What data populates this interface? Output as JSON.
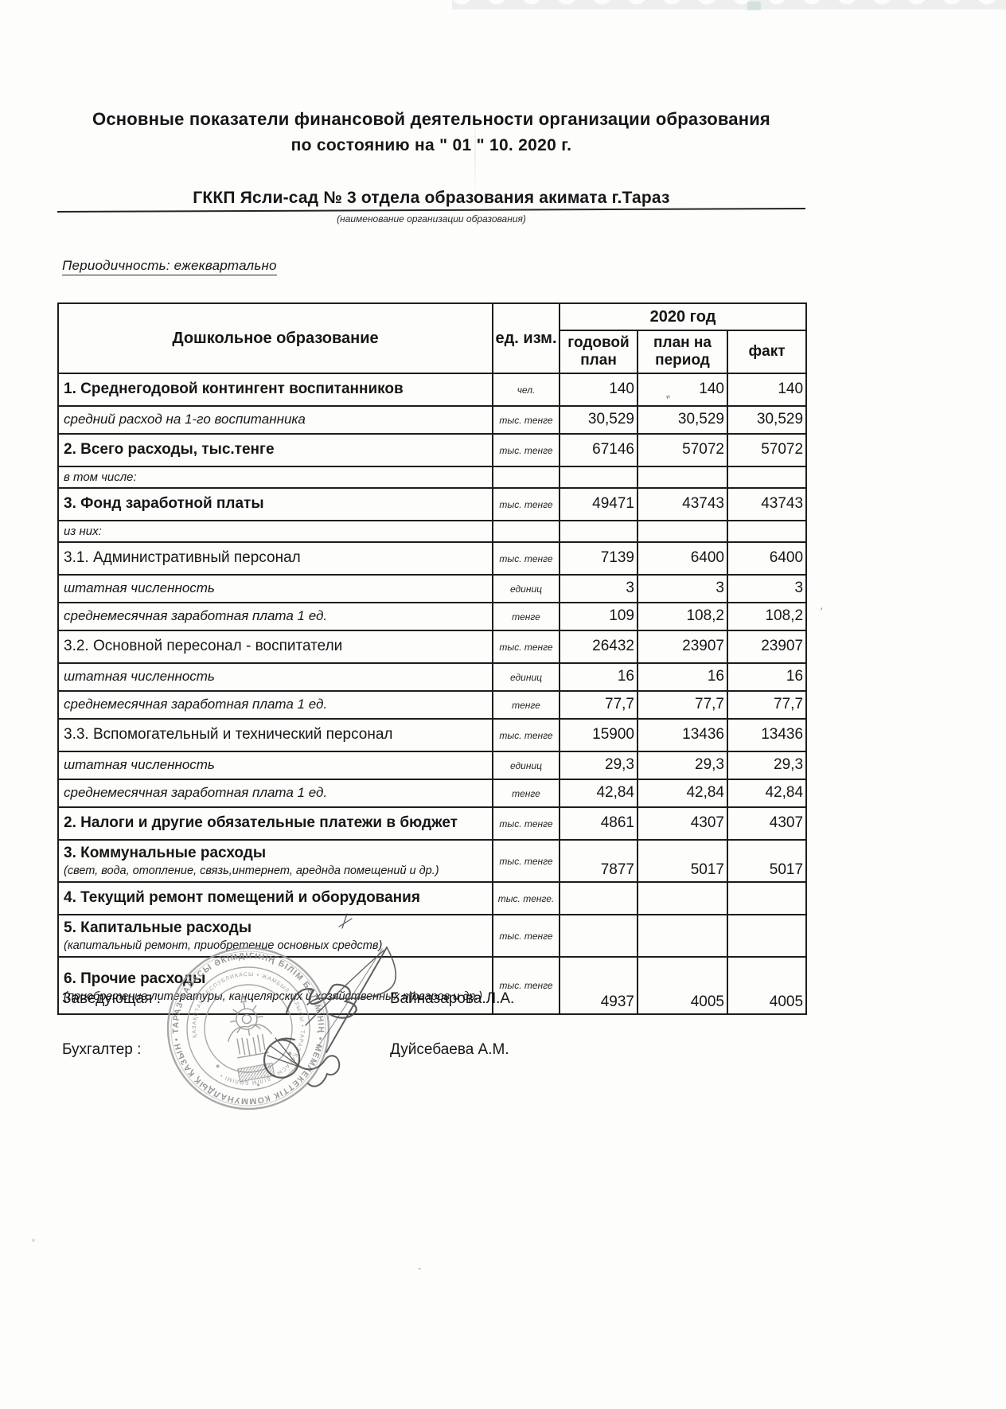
{
  "page": {
    "title_line1": "Основные показатели финансовой деятельности организации образования",
    "title_line2": "по состоянию на \" 01 \" 10. 2020 г.",
    "org_name": "ГККП Ясли-сад № 3  отдела образования акимата г.Тараз",
    "org_caption": "(наименование организации образования)",
    "periodicity": "Периодичность: ежеквартально"
  },
  "table": {
    "header": {
      "col_indicator": "Дошкольное образование",
      "col_unit": "ед. изм.",
      "year_group": "2020 год",
      "col_annual_plan": "годовой план",
      "col_period_plan": "план на период",
      "col_fact": "факт"
    },
    "rows": [
      {
        "label": "1. Среднегодовой контингент воспитанников",
        "style": "bold",
        "unit": "чел.",
        "annual": "140",
        "period": "140",
        "fact": "140"
      },
      {
        "label": "средний расход на 1-го воспитанника",
        "style": "italic",
        "unit": "тыс. тенге",
        "annual": "30,529",
        "period": "30,529",
        "fact": "30,529"
      },
      {
        "label": "2. Всего расходы, тыс.тенге",
        "style": "bold",
        "unit": "тыс. тенге",
        "annual": "67146",
        "period": "57072",
        "fact": "57072"
      },
      {
        "label": "в том числе:",
        "style": "note",
        "unit": "",
        "annual": "",
        "period": "",
        "fact": ""
      },
      {
        "label": "3. Фонд заработной платы",
        "style": "bold",
        "unit": "тыс. тенге",
        "annual": "49471",
        "period": "43743",
        "fact": "43743"
      },
      {
        "label": "из них:",
        "style": "note",
        "unit": "",
        "annual": "",
        "period": "",
        "fact": ""
      },
      {
        "label": "3.1. Административный персонал",
        "style": "regular",
        "unit": "тыс. тенге",
        "annual": "7139",
        "period": "6400",
        "fact": "6400"
      },
      {
        "label": "штатная численность",
        "style": "italic",
        "unit": "единиц",
        "annual": "3",
        "period": "3",
        "fact": "3"
      },
      {
        "label": "среднемесячная заработная плата 1 ед.",
        "style": "italic",
        "unit": "тенге",
        "annual": "109",
        "period": "108,2",
        "fact": "108,2"
      },
      {
        "label": "3.2. Основной пересонал - воспитатели",
        "style": "regular",
        "unit": "тыс. тенге",
        "annual": "26432",
        "period": "23907",
        "fact": "23907"
      },
      {
        "label": "штатная численность",
        "style": "italic",
        "unit": "единиц",
        "annual": "16",
        "period": "16",
        "fact": "16"
      },
      {
        "label": "среднемесячная заработная плата 1 ед.",
        "style": "italic",
        "unit": "тенге",
        "annual": "77,7",
        "period": "77,7",
        "fact": "77,7"
      },
      {
        "label": "3.3. Вспомогательный и технический персонал",
        "style": "regular",
        "unit": "тыс. тенге",
        "annual": "15900",
        "period": "13436",
        "fact": "13436"
      },
      {
        "label": "штатная численность",
        "style": "italic",
        "unit": "единиц",
        "annual": "29,3",
        "period": "29,3",
        "fact": "29,3"
      },
      {
        "label": "среднемесячная заработная плата 1 ед.",
        "style": "italic",
        "unit": "тенге",
        "annual": "42,84",
        "period": "42,84",
        "fact": "42,84"
      },
      {
        "label": "2. Налоги и другие обязательные платежи в бюджет",
        "style": "bold",
        "unit": "тыс. тенге",
        "annual": "4861",
        "period": "4307",
        "fact": "4307"
      },
      {
        "label": "3. Коммунальные расходы",
        "sublabel": "(свет, вода, отопление, связь,интернет, ареднда помещений и др.)",
        "style": "bold-sub",
        "unit": "тыс. тенге",
        "annual": "7877",
        "period": "5017",
        "fact": "5017"
      },
      {
        "label": "4. Текущий ремонт помещений и оборудования",
        "style": "bold",
        "unit": "тыс. тенге.",
        "annual": "",
        "period": "",
        "fact": ""
      },
      {
        "label": "5. Капитальные расходы",
        "sublabel": "(капитальный ремонт, приобретение основных средств)",
        "style": "bold-sub",
        "unit": "тыс. тенге",
        "annual": "",
        "period": "",
        "fact": ""
      },
      {
        "label": "6. Прочие расходы",
        "sublabel": "(приобретение литературы, канцелярских и хозяйственных товаров и др.)",
        "style": "bold-sub-tall",
        "unit": "тыс. тенге",
        "annual": "4937",
        "period": "4005",
        "fact": "4005"
      }
    ]
  },
  "signatures": [
    {
      "role": "Заведующая :",
      "name": "Байназарова.Л.А."
    },
    {
      "role": "Бухгалтер :",
      "name": "Дуйсебаева А.М."
    }
  ],
  "stamp": {
    "type": "round-seal",
    "ink_color": "#8f8f8f",
    "outer_text": "• ТАРАЗ ҚАЛАСЫ ӘКІМДІГІНІҢ БІЛІМ БӨЛІМІНІҢ • МЕМЛЕКЕТТІК КОММУНАЛДЫҚ ҚАЗЫНАЛЫҚ КӘСІПОРНЫ",
    "inner_text": "ҚАЗАҚСТАН РЕСПУБЛИКАСЫ • ЖАМБЫЛ ОБЛЫСЫ • ТАРАЗ ҚАЛАСЫ • БІЛІМ БӨЛІМІ •",
    "emblem": "kazakhstan-emblem"
  },
  "artifacts": {
    "tick_above_period_value": "″",
    "ink_speck_right": "'",
    "ink_speck_bottom": "`"
  }
}
